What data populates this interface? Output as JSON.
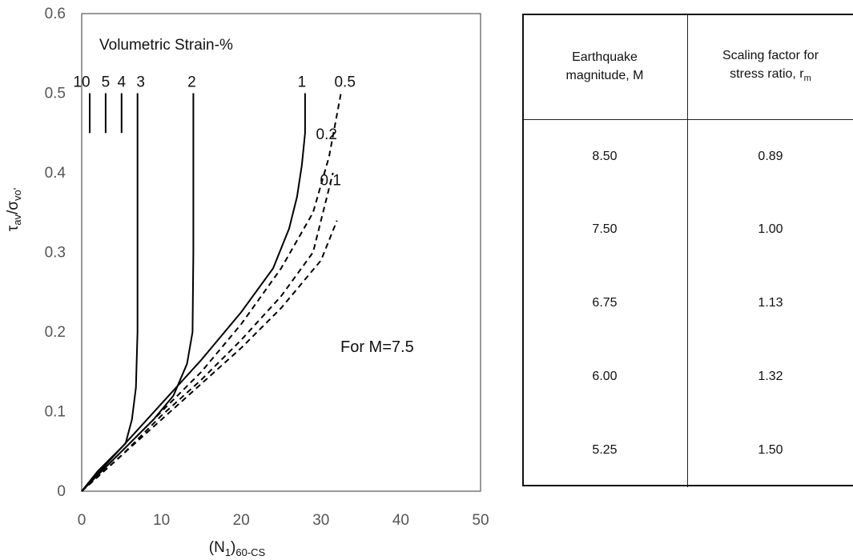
{
  "chart_data": {
    "type": "line",
    "xlabel": "(N1)60-CS",
    "ylabel": "τav/σvo'",
    "xlim": [
      0,
      50
    ],
    "ylim": [
      0,
      0.6
    ],
    "xticks": [
      "0",
      "10",
      "20",
      "30",
      "40",
      "50"
    ],
    "yticks": [
      "0",
      "0.1",
      "0.2",
      "0.3",
      "0.4",
      "0.5",
      "0.6"
    ],
    "grid": false,
    "annotations": {
      "strain_title": "Volumetric Strain-%",
      "magnitude_note": "For M=7.5"
    },
    "series": [
      {
        "name": "10",
        "style": "solid",
        "x": [
          1,
          1
        ],
        "y": [
          0.45,
          0.5
        ]
      },
      {
        "name": "5",
        "style": "solid",
        "x": [
          3,
          3
        ],
        "y": [
          0.45,
          0.5
        ]
      },
      {
        "name": "4",
        "style": "solid",
        "x": [
          5,
          5
        ],
        "y": [
          0.45,
          0.5
        ]
      },
      {
        "name": "3",
        "style": "solid",
        "x": [
          0,
          2,
          4,
          5.5,
          6.3,
          6.8,
          7,
          7,
          7,
          7
        ],
        "y": [
          0,
          0.025,
          0.045,
          0.06,
          0.09,
          0.13,
          0.2,
          0.3,
          0.4,
          0.5
        ]
      },
      {
        "name": "2",
        "style": "solid",
        "x": [
          0,
          3,
          6,
          9,
          11.5,
          13.2,
          13.9,
          14,
          14,
          14
        ],
        "y": [
          0,
          0.03,
          0.06,
          0.09,
          0.12,
          0.16,
          0.2,
          0.3,
          0.4,
          0.5
        ]
      },
      {
        "name": "1",
        "style": "solid",
        "x": [
          0,
          5,
          10,
          15,
          20,
          24,
          26,
          27,
          27.6,
          28,
          28
        ],
        "y": [
          0,
          0.055,
          0.11,
          0.165,
          0.225,
          0.28,
          0.33,
          0.37,
          0.41,
          0.45,
          0.5
        ]
      },
      {
        "name": "0.5",
        "style": "dashed",
        "x": [
          0,
          5,
          10,
          15,
          20,
          25,
          29,
          31,
          32.5
        ],
        "y": [
          0,
          0.05,
          0.1,
          0.15,
          0.21,
          0.28,
          0.35,
          0.42,
          0.5
        ]
      },
      {
        "name": "0.2",
        "style": "dashed",
        "x": [
          0,
          5,
          10,
          15,
          20,
          25,
          29,
          31.5
        ],
        "y": [
          0,
          0.045,
          0.095,
          0.14,
          0.19,
          0.245,
          0.3,
          0.4
        ]
      },
      {
        "name": "0.1",
        "style": "dashed",
        "x": [
          0,
          5,
          10,
          15,
          20,
          25,
          30,
          32
        ],
        "y": [
          0,
          0.045,
          0.09,
          0.135,
          0.18,
          0.23,
          0.29,
          0.34
        ]
      }
    ]
  },
  "table": {
    "headers": [
      {
        "line1": "Earthquake",
        "line2": "magnitude, M",
        "sub": ""
      },
      {
        "line1": "Scaling factor for",
        "line2": "stress ratio, r",
        "sub": "m"
      }
    ],
    "rows": [
      {
        "magnitude": "8.50",
        "factor": "0.89"
      },
      {
        "magnitude": "7.50",
        "factor": "1.00"
      },
      {
        "magnitude": "6.75",
        "factor": "1.13"
      },
      {
        "magnitude": "6.00",
        "factor": "1.32"
      },
      {
        "magnitude": "5.25",
        "factor": "1.50"
      }
    ]
  }
}
